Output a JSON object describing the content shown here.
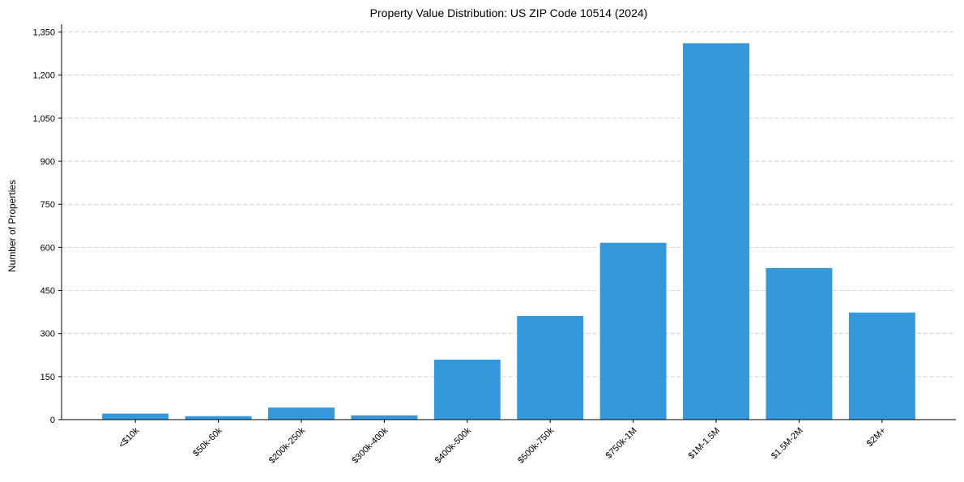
{
  "chart_data": {
    "type": "bar",
    "title": "Property Value Distribution: US ZIP Code 10514 (2024)",
    "xlabel": "",
    "ylabel": "Number of Properties",
    "categories": [
      "<$10k",
      "$50k-60k",
      "$200k-250k",
      "$300k-400k",
      "$400k-500k",
      "$500k-750k",
      "$750k-1M",
      "$1M-1.5M",
      "$1.5M-2M",
      "$2M+"
    ],
    "values": [
      21,
      12,
      42,
      15,
      209,
      361,
      616,
      1311,
      528,
      373
    ],
    "ylim": [
      0,
      1377
    ],
    "yticks": [
      0,
      150,
      300,
      450,
      600,
      750,
      900,
      1050,
      1200,
      1350
    ],
    "ytick_labels": [
      "0",
      "150",
      "300",
      "450",
      "600",
      "750",
      "900",
      "1,050",
      "1,200",
      "1,350"
    ],
    "grid": "y dashed",
    "bar_color": "#3498db"
  }
}
